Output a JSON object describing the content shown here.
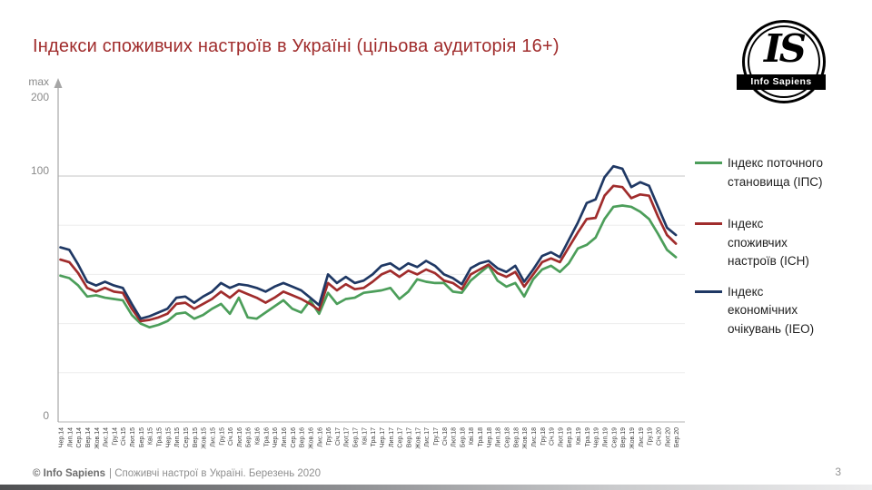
{
  "slide": {
    "title": "Індекси споживчих настроїв в Україні (цільова аудиторія 16+)",
    "logo": {
      "monogram": "IS",
      "name": "Info Sapiens"
    },
    "footer": {
      "brand": "© Info Sapiens",
      "text": "| Споживчі настрої в Україні. Березень 2020",
      "page_number": "3"
    }
  },
  "chart_data": {
    "type": "line",
    "title": "",
    "xlabel": "",
    "ylabel": "",
    "ylim": [
      0,
      140
    ],
    "axis_max_note": "max 200",
    "y_axis": {
      "top_label": "max",
      "labels": [
        "200",
        "100",
        "0"
      ]
    },
    "gridlines": [
      20,
      40,
      60,
      80,
      100
    ],
    "legend_position": "right",
    "categories": [
      "Чер.14",
      "Лип.14",
      "Сер.14",
      "Вер.14",
      "Жов.14",
      "Лис.14",
      "Гру.14",
      "Січ.15",
      "Лют.15",
      "Бер.15",
      "Кві.15",
      "Тра.15",
      "Чер.15",
      "Лип.15",
      "Сер.15",
      "Вер.15",
      "Жов.15",
      "Лис.15",
      "Гру.15",
      "Січ.16",
      "Лют.16",
      "Бер.16",
      "Кві.16",
      "Тра.16",
      "Чер.16",
      "Лип.16",
      "Сер.16",
      "Вер.16",
      "Жов.16",
      "Лис.16",
      "Гру.16",
      "Січ.17",
      "Лют.17",
      "Бер.17",
      "Кві.17",
      "Тра.17",
      "Чер.17",
      "Лип.17",
      "Сер.17",
      "Вер.17",
      "Жов.17",
      "Лис.17",
      "Гру.17",
      "Січ.18",
      "Лют.18",
      "Бер.18",
      "Кві.18",
      "Тра.18",
      "Чер.18",
      "Лип.18",
      "Сер.18",
      "Вер.18",
      "Жов.18",
      "Лис.18",
      "Гру.18",
      "Січ.19",
      "Лют.19",
      "Бер.19",
      "Кві.19",
      "Тра.19",
      "Чер.19",
      "Лип.19",
      "Сер.19",
      "Вер.19",
      "Жов.19",
      "Лис.19",
      "Гру.19",
      "Січ.20",
      "Лют.20",
      "Бер.20"
    ],
    "series": [
      {
        "name": "Індекс поточного становища (ІПС)",
        "color": "#4c9e5a",
        "values": [
          59.5,
          58.5,
          55.5,
          51,
          51.5,
          50.5,
          50,
          49.5,
          43.5,
          40,
          38.5,
          39.5,
          41,
          44,
          44.5,
          42,
          43.5,
          46,
          48,
          44,
          50.5,
          42.5,
          42,
          44.5,
          47,
          49.5,
          46,
          44.5,
          49.5,
          44,
          52.5,
          48,
          50,
          50.5,
          52.5,
          53,
          53.5,
          54.5,
          50,
          53,
          58,
          57,
          56.5,
          56.5,
          53,
          52.5,
          57.5,
          60.5,
          63.5,
          57.5,
          55,
          56.5,
          51,
          58,
          62,
          63.5,
          61,
          64.5,
          70.5,
          72,
          75,
          82.5,
          87.5,
          88,
          87.5,
          85.5,
          82.5,
          76.5,
          70,
          67
        ]
      },
      {
        "name": "Індекс споживчих настроїв (ІСН)",
        "color": "#a02c2c",
        "values": [
          66,
          65,
          60.5,
          54.5,
          53,
          54.5,
          53,
          52.5,
          46,
          41,
          41.5,
          42.5,
          44,
          48,
          48.5,
          46,
          48,
          50,
          53,
          50.5,
          53.5,
          52,
          50.5,
          48.5,
          50.5,
          53,
          51.5,
          50,
          48,
          45.5,
          56.5,
          53.5,
          56,
          54,
          54.5,
          57,
          60,
          61.5,
          59,
          61.5,
          60,
          62,
          60.5,
          57.5,
          56.5,
          54,
          60,
          62,
          64,
          60.5,
          59,
          61,
          55,
          60,
          65,
          66.5,
          65,
          71,
          77,
          82.5,
          83,
          92,
          96,
          95.5,
          91,
          92.5,
          92,
          83.5,
          76,
          72.5
        ]
      },
      {
        "name": "Індекс економічних очікувань (ІЕО)",
        "color": "#1f3864",
        "values": [
          71,
          70,
          64,
          57,
          55.5,
          57,
          55.5,
          54.5,
          48,
          42,
          43,
          44.5,
          46,
          50.5,
          51,
          48.5,
          51,
          53,
          56.5,
          54.5,
          56,
          55.5,
          54.5,
          53,
          55,
          56.5,
          55,
          53.5,
          50.5,
          47.5,
          60,
          56.5,
          59,
          56.5,
          57.5,
          60,
          63.5,
          64.5,
          62,
          64.5,
          63,
          65.5,
          63.5,
          60,
          58.5,
          56,
          62.5,
          64.5,
          65.5,
          62.5,
          61,
          63.5,
          57,
          62,
          67.5,
          69,
          67,
          74,
          81,
          89,
          90.5,
          99.5,
          104,
          103,
          95.5,
          97.5,
          96,
          87.5,
          79,
          76
        ]
      }
    ]
  }
}
